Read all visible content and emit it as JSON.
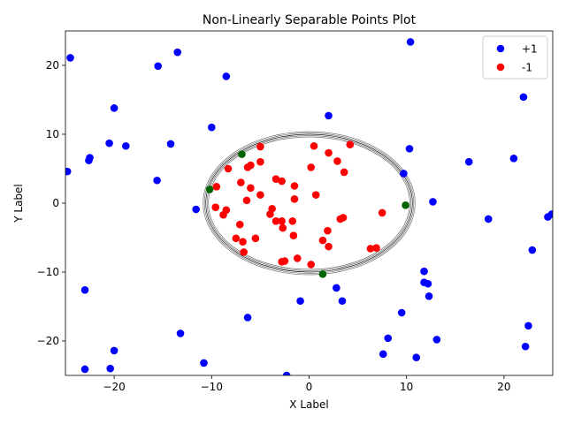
{
  "chart_data": {
    "type": "scatter",
    "title": "Non-Linearly Separable Points Plot",
    "xlabel": "X Label",
    "ylabel": "Y Label",
    "xlim": [
      -25,
      25
    ],
    "ylim": [
      -25,
      25
    ],
    "xticks": [
      -20,
      -10,
      0,
      10,
      20
    ],
    "yticks": [
      -20,
      -10,
      0,
      10,
      20
    ],
    "grid": false,
    "legend_position": "top-right",
    "series": [
      {
        "name": "+1",
        "color": "#0000ff",
        "points": [
          [
            -24.5,
            21.1
          ],
          [
            -15.5,
            19.9
          ],
          [
            -13.5,
            21.9
          ],
          [
            -8.5,
            18.4
          ],
          [
            10.4,
            23.4
          ],
          [
            -20.0,
            13.8
          ],
          [
            -20.5,
            8.7
          ],
          [
            -22.5,
            6.6
          ],
          [
            -22.6,
            6.2
          ],
          [
            -18.8,
            8.3
          ],
          [
            -14.2,
            8.6
          ],
          [
            -10.0,
            11.0
          ],
          [
            2.0,
            12.7
          ],
          [
            22.0,
            15.4
          ],
          [
            10.3,
            7.9
          ],
          [
            -24.8,
            4.6
          ],
          [
            -15.6,
            3.3
          ],
          [
            -11.6,
            -0.9
          ],
          [
            9.7,
            4.3
          ],
          [
            16.4,
            6.0
          ],
          [
            21.0,
            6.5
          ],
          [
            12.7,
            0.2
          ],
          [
            18.4,
            -2.3
          ],
          [
            24.5,
            -2.0
          ],
          [
            24.9,
            -1.6
          ],
          [
            22.9,
            -6.8
          ],
          [
            -23.0,
            -12.6
          ],
          [
            -0.9,
            -14.2
          ],
          [
            2.8,
            -12.3
          ],
          [
            3.4,
            -14.2
          ],
          [
            11.8,
            -9.9
          ],
          [
            11.8,
            -11.5
          ],
          [
            12.2,
            -11.7
          ],
          [
            12.3,
            -13.5
          ],
          [
            9.5,
            -15.9
          ],
          [
            -6.3,
            -16.6
          ],
          [
            -13.2,
            -18.9
          ],
          [
            8.1,
            -19.6
          ],
          [
            13.1,
            -19.8
          ],
          [
            22.5,
            -17.8
          ],
          [
            22.2,
            -20.8
          ],
          [
            -20.0,
            -21.4
          ],
          [
            7.6,
            -21.9
          ],
          [
            11.0,
            -22.4
          ],
          [
            -10.8,
            -23.2
          ],
          [
            -23.0,
            -24.1
          ],
          [
            -20.4,
            -24.0
          ],
          [
            -2.3,
            -25.0
          ]
        ]
      },
      {
        "name": "-1",
        "color": "#ff0000",
        "points": [
          [
            -5.0,
            8.2
          ],
          [
            0.5,
            8.3
          ],
          [
            4.2,
            8.5
          ],
          [
            2.0,
            7.3
          ],
          [
            2.9,
            6.1
          ],
          [
            -8.3,
            5.0
          ],
          [
            -6.0,
            5.5
          ],
          [
            -6.3,
            5.2
          ],
          [
            -5.0,
            6.0
          ],
          [
            0.2,
            5.2
          ],
          [
            3.6,
            4.5
          ],
          [
            -3.4,
            3.5
          ],
          [
            -2.8,
            3.2
          ],
          [
            -7.0,
            3.0
          ],
          [
            -9.5,
            2.4
          ],
          [
            -6.0,
            2.2
          ],
          [
            -1.5,
            2.5
          ],
          [
            -5.0,
            1.2
          ],
          [
            0.7,
            1.2
          ],
          [
            -6.4,
            0.4
          ],
          [
            -1.5,
            0.6
          ],
          [
            -9.6,
            -0.6
          ],
          [
            -8.5,
            -1.0
          ],
          [
            -3.8,
            -0.8
          ],
          [
            -8.8,
            -1.7
          ],
          [
            -4.0,
            -1.6
          ],
          [
            -3.4,
            -2.6
          ],
          [
            -2.8,
            -2.6
          ],
          [
            -1.7,
            -2.6
          ],
          [
            3.2,
            -2.3
          ],
          [
            3.5,
            -2.1
          ],
          [
            7.5,
            -1.4
          ],
          [
            -7.1,
            -3.1
          ],
          [
            -2.7,
            -3.6
          ],
          [
            1.9,
            -4.0
          ],
          [
            -1.6,
            -4.7
          ],
          [
            -7.5,
            -5.1
          ],
          [
            -5.5,
            -5.1
          ],
          [
            -6.8,
            -5.6
          ],
          [
            1.4,
            -5.4
          ],
          [
            2.0,
            -6.3
          ],
          [
            6.3,
            -6.6
          ],
          [
            6.9,
            -6.5
          ],
          [
            -6.7,
            -7.1
          ],
          [
            -1.2,
            -8.0
          ],
          [
            -2.8,
            -8.5
          ],
          [
            -2.5,
            -8.4
          ],
          [
            0.2,
            -8.9
          ]
        ]
      },
      {
        "name": "",
        "color": "#006400",
        "points": [
          [
            -6.9,
            7.1
          ],
          [
            -10.2,
            2.0
          ],
          [
            9.9,
            -0.3
          ],
          [
            1.4,
            -10.3
          ]
        ]
      }
    ],
    "boundary": {
      "shape": "ellipse",
      "center": [
        0,
        0
      ],
      "radii": [
        10.6,
        10.0
      ],
      "color": "#000000"
    },
    "legend": [
      {
        "label": "+1",
        "color": "#0000ff"
      },
      {
        "label": "-1",
        "color": "#ff0000"
      }
    ]
  }
}
